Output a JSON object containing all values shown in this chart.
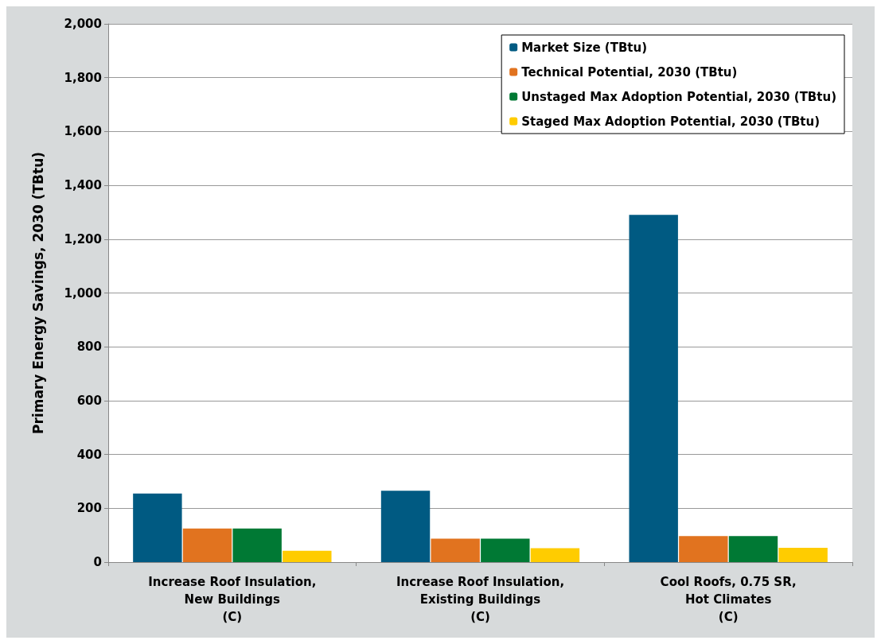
{
  "chart_data": {
    "type": "bar",
    "ylabel": "Primary Energy Savings, 2030 (TBtu)",
    "categories": [
      "Increase Roof Insulation,\nNew Buildings\n(C)",
      "Increase Roof Insulation,\nExisting Buildings\n(C)",
      "Cool Roofs, 0.75 SR,\nHot Climates\n(C)"
    ],
    "series": [
      {
        "name": "Market Size (TBtu)",
        "color": "#005a82",
        "values": [
          255,
          265,
          1290
        ]
      },
      {
        "name": "Technical Potential, 2030 (TBtu)",
        "color": "#e1731f",
        "values": [
          125,
          87,
          97
        ]
      },
      {
        "name": "Unstaged Max Adoption Potential, 2030 (TBtu)",
        "color": "#007934",
        "values": [
          125,
          87,
          97
        ]
      },
      {
        "name": "Staged Max Adoption Potential, 2030 (TBtu)",
        "color": "#ffcc00",
        "values": [
          42,
          52,
          53
        ]
      }
    ],
    "ylim": [
      0,
      2000
    ],
    "yticks": [
      0,
      200,
      400,
      600,
      800,
      {
        "value": 1000,
        "label": "1,000"
      },
      {
        "value": 1200,
        "label": "1,200"
      },
      {
        "value": 1400,
        "label": "1,400"
      },
      {
        "value": 1600,
        "label": "1,600"
      },
      {
        "value": 1800,
        "label": "1,800"
      },
      {
        "value": 2000,
        "label": "2,000"
      }
    ],
    "grid": "y",
    "legend": "top right"
  }
}
